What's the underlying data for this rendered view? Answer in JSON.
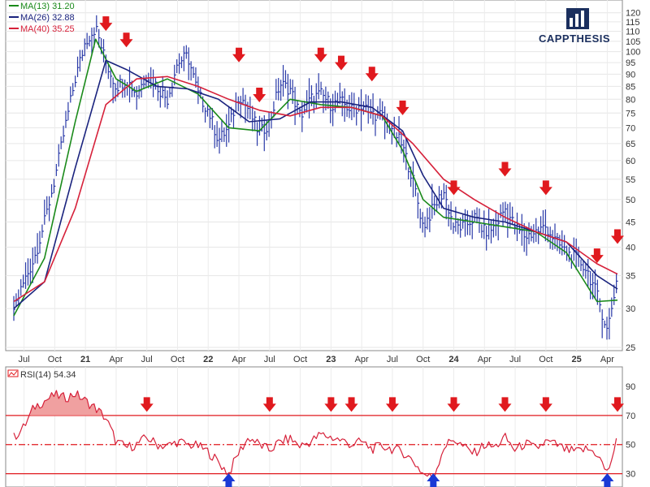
{
  "chart_data": [
    {
      "type": "line",
      "subtype": "ohlc-bars-with-moving-averages",
      "title": "",
      "legend": [
        {
          "label": "MA(13) 31.20",
          "color": "#1a8a1a"
        },
        {
          "label": "MA(26) 32.88",
          "color": "#1a237e"
        },
        {
          "label": "MA(40) 35.25",
          "color": "#d6213a"
        }
      ],
      "x_tick_labels": [
        "Jul",
        "Oct",
        "21",
        "Apr",
        "Jul",
        "Oct",
        "22",
        "Apr",
        "Jul",
        "Oct",
        "23",
        "Apr",
        "Jul",
        "Oct",
        "24",
        "Apr",
        "Jul",
        "Oct",
        "25",
        "Apr"
      ],
      "y_tick_labels": [
        "25",
        "30",
        "35",
        "40",
        "45",
        "50",
        "55",
        "60",
        "65",
        "70",
        "75",
        "80",
        "85",
        "90",
        "95",
        "100",
        "105",
        "110",
        "115",
        "120"
      ],
      "ylim": [
        25,
        125
      ],
      "y_scale": "log",
      "price_color": "#2a3aa8",
      "price_series": {
        "name": "Price (weekly)",
        "x": [
          "2020-06",
          "2020-07",
          "2020-08",
          "2020-09",
          "2020-10",
          "2020-11",
          "2020-12",
          "2021-01",
          "2021-02",
          "2021-03",
          "2021-04",
          "2021-05",
          "2021-06",
          "2021-07",
          "2021-08",
          "2021-09",
          "2021-10",
          "2021-11",
          "2021-12",
          "2022-01",
          "2022-02",
          "2022-03",
          "2022-04",
          "2022-05",
          "2022-06",
          "2022-07",
          "2022-08",
          "2022-09",
          "2022-10",
          "2022-11",
          "2022-12",
          "2023-01",
          "2023-02",
          "2023-03",
          "2023-04",
          "2023-05",
          "2023-06",
          "2023-07",
          "2023-08",
          "2023-09",
          "2023-10",
          "2023-11",
          "2023-12",
          "2024-01",
          "2024-02",
          "2024-03",
          "2024-04",
          "2024-05",
          "2024-06",
          "2024-07",
          "2024-08",
          "2024-09",
          "2024-10",
          "2024-11",
          "2024-12",
          "2025-01",
          "2025-02",
          "2025-03",
          "2025-04",
          "2025-05"
        ],
        "y": [
          30,
          34,
          38,
          45,
          55,
          70,
          88,
          105,
          112,
          95,
          85,
          88,
          82,
          90,
          85,
          80,
          95,
          98,
          82,
          76,
          66,
          70,
          82,
          76,
          68,
          72,
          86,
          84,
          74,
          80,
          82,
          78,
          79,
          76,
          78,
          75,
          74,
          70,
          64,
          55,
          44,
          48,
          52,
          44,
          44,
          46,
          43,
          44,
          48,
          44,
          42,
          43,
          44,
          41,
          39,
          38,
          36,
          32,
          27,
          35
        ]
      },
      "series": [
        {
          "name": "MA(13)",
          "color": "#1a8a1a",
          "x": [
            "2020-06",
            "2020-09",
            "2020-12",
            "2021-02",
            "2021-04",
            "2021-06",
            "2021-09",
            "2021-12",
            "2022-03",
            "2022-06",
            "2022-09",
            "2022-12",
            "2023-03",
            "2023-06",
            "2023-08",
            "2023-10",
            "2023-12",
            "2024-03",
            "2024-06",
            "2024-09",
            "2024-12",
            "2025-03",
            "2025-05"
          ],
          "y": [
            29,
            38,
            72,
            106,
            88,
            83,
            88,
            82,
            70,
            69,
            80,
            78,
            77,
            74,
            63,
            50,
            46,
            45,
            44,
            43,
            39,
            31,
            31.2
          ]
        },
        {
          "name": "MA(26)",
          "color": "#1a237e",
          "x": [
            "2020-06",
            "2020-09",
            "2020-12",
            "2021-03",
            "2021-05",
            "2021-08",
            "2021-11",
            "2022-02",
            "2022-05",
            "2022-08",
            "2022-11",
            "2023-02",
            "2023-05",
            "2023-08",
            "2023-10",
            "2023-12",
            "2024-03",
            "2024-06",
            "2024-09",
            "2024-12",
            "2025-03",
            "2025-05"
          ],
          "y": [
            30,
            34,
            58,
            96,
            92,
            85,
            84,
            80,
            72,
            73,
            79,
            79,
            77,
            69,
            56,
            48,
            46,
            45,
            43,
            41,
            35,
            32.88
          ]
        },
        {
          "name": "MA(40)",
          "color": "#d6213a",
          "x": [
            "2020-06",
            "2020-09",
            "2020-12",
            "2021-03",
            "2021-06",
            "2021-09",
            "2021-12",
            "2022-03",
            "2022-06",
            "2022-09",
            "2022-12",
            "2023-03",
            "2023-06",
            "2023-09",
            "2023-12",
            "2024-03",
            "2024-06",
            "2024-09",
            "2024-12",
            "2025-03",
            "2025-05"
          ],
          "y": [
            31,
            34,
            48,
            78,
            88,
            89,
            85,
            80,
            76,
            74,
            77,
            77,
            74,
            65,
            55,
            50,
            46,
            43,
            41,
            37,
            35.25
          ]
        }
      ],
      "markers_down": [
        "2021-03",
        "2021-05",
        "2022-04",
        "2022-06",
        "2022-12",
        "2023-02",
        "2023-05",
        "2023-08",
        "2024-01",
        "2024-06",
        "2024-10",
        "2025-03",
        "2025-05"
      ]
    },
    {
      "type": "line",
      "title": "",
      "legend": [
        {
          "label": "RSI(14) 54.34",
          "color": "#d6213a"
        }
      ],
      "x_tick_labels": [],
      "y_tick_labels": [
        "30",
        "50",
        "70",
        "90"
      ],
      "ylim": [
        22,
        100
      ],
      "reference_lines": [
        30,
        50,
        70
      ],
      "series": [
        {
          "name": "RSI(14)",
          "color": "#d6213a",
          "x": [
            "2020-06",
            "2020-07",
            "2020-08",
            "2020-09",
            "2020-10",
            "2020-11",
            "2020-12",
            "2021-01",
            "2021-02",
            "2021-03",
            "2021-04",
            "2021-05",
            "2021-06",
            "2021-07",
            "2021-08",
            "2021-09",
            "2021-10",
            "2021-11",
            "2021-12",
            "2022-01",
            "2022-02",
            "2022-03",
            "2022-04",
            "2022-05",
            "2022-06",
            "2022-07",
            "2022-08",
            "2022-09",
            "2022-10",
            "2022-11",
            "2022-12",
            "2023-01",
            "2023-02",
            "2023-03",
            "2023-04",
            "2023-05",
            "2023-06",
            "2023-07",
            "2023-08",
            "2023-09",
            "2023-10",
            "2023-11",
            "2023-12",
            "2024-01",
            "2024-02",
            "2024-03",
            "2024-04",
            "2024-05",
            "2024-06",
            "2024-07",
            "2024-08",
            "2024-09",
            "2024-10",
            "2024-11",
            "2024-12",
            "2025-01",
            "2025-02",
            "2025-03",
            "2025-04",
            "2025-05"
          ],
          "y": [
            55,
            62,
            76,
            80,
            84,
            82,
            85,
            80,
            75,
            68,
            52,
            48,
            50,
            55,
            50,
            49,
            52,
            50,
            49,
            45,
            38,
            30,
            45,
            55,
            50,
            46,
            52,
            54,
            49,
            52,
            57,
            55,
            53,
            50,
            52,
            47,
            49,
            47,
            45,
            39,
            30,
            27,
            48,
            54,
            48,
            44,
            50,
            48,
            55,
            46,
            51,
            47,
            52,
            50,
            46,
            45,
            47,
            44,
            30,
            54.34
          ]
        }
      ],
      "markers_down": [
        "2021-07",
        "2022-07",
        "2023-01",
        "2023-03",
        "2023-07",
        "2024-01",
        "2024-06",
        "2024-10",
        "2025-05"
      ],
      "markers_up": [
        "2022-03",
        "2023-11",
        "2025-04"
      ]
    }
  ],
  "logo": {
    "text": "CAPPTHESIS"
  }
}
